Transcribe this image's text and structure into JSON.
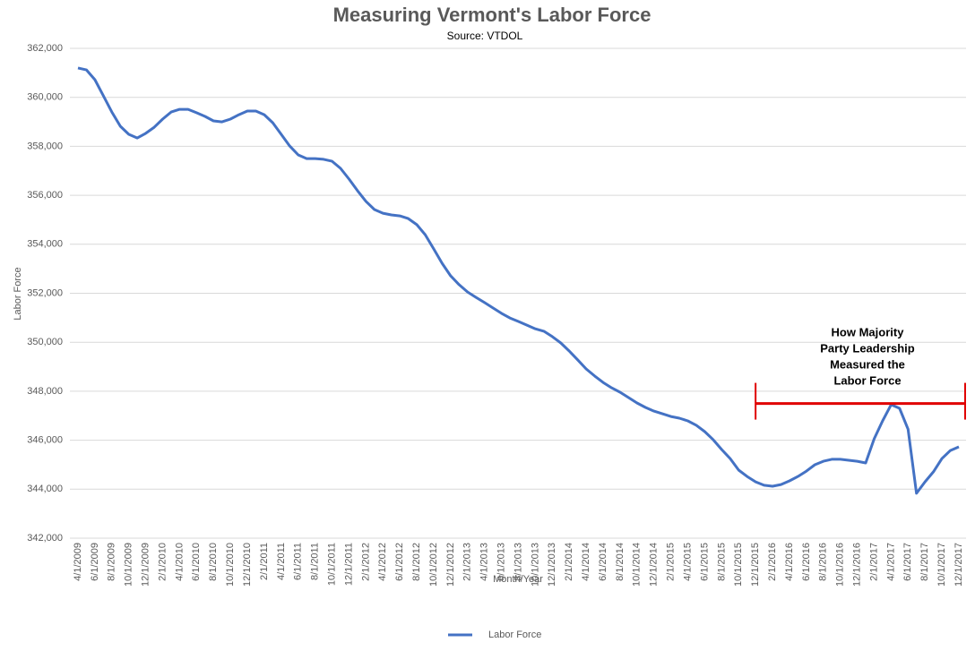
{
  "chart_data": {
    "type": "line",
    "title": "Measuring Vermont's Labor Force",
    "subtitle": "Source: VTDOL",
    "x_label": "Month/Year",
    "y_label": "Labor Force",
    "categories": [
      "4/1/2009",
      null,
      "6/1/2009",
      null,
      "8/1/2009",
      null,
      "10/1/2009",
      null,
      "12/1/2009",
      null,
      "2/1/2010",
      null,
      "4/1/2010",
      null,
      "6/1/2010",
      null,
      "8/1/2010",
      null,
      "10/1/2010",
      null,
      "12/1/2010",
      null,
      "2/1/2011",
      null,
      "4/1/2011",
      null,
      "6/1/2011",
      null,
      "8/1/2011",
      null,
      "10/1/2011",
      null,
      "12/1/2011",
      null,
      "2/1/2012",
      null,
      "4/1/2012",
      null,
      "6/1/2012",
      null,
      "8/1/2012",
      null,
      "10/1/2012",
      null,
      "12/1/2012",
      null,
      "2/1/2013",
      null,
      "4/1/2013",
      null,
      "6/1/2013",
      null,
      "8/1/2013",
      null,
      "10/1/2013",
      null,
      "12/1/2013",
      null,
      "2/1/2014",
      null,
      "4/1/2014",
      null,
      "6/1/2014",
      null,
      "8/1/2014",
      null,
      "10/1/2014",
      null,
      "12/1/2014",
      null,
      "2/1/2015",
      null,
      "4/1/2015",
      null,
      "6/1/2015",
      null,
      "8/1/2015",
      null,
      "10/1/2015",
      null,
      "12/1/2015",
      null,
      "2/1/2016",
      null,
      "4/1/2016",
      null,
      "6/1/2016",
      null,
      "8/1/2016",
      null,
      "10/1/2016",
      null,
      "12/1/2016",
      null,
      "2/1/2017",
      null,
      "4/1/2017",
      null,
      "6/1/2017",
      null,
      "8/1/2017",
      null,
      "10/1/2017",
      null,
      "12/1/2017"
    ],
    "series": [
      {
        "name": "Labor Force",
        "color": "#4472c4",
        "values": [
          361200,
          361120,
          360720,
          360060,
          359400,
          358820,
          358490,
          358340,
          358530,
          358780,
          359110,
          359400,
          359510,
          359510,
          359370,
          359220,
          359040,
          359000,
          359110,
          359290,
          359440,
          359440,
          359290,
          358960,
          358490,
          358010,
          357650,
          357500,
          357500,
          357470,
          357390,
          357100,
          356660,
          356190,
          355750,
          355420,
          355270,
          355200,
          355160,
          355050,
          354800,
          354390,
          353810,
          353220,
          352710,
          352350,
          352050,
          351830,
          351620,
          351400,
          351180,
          350990,
          350850,
          350700,
          350550,
          350450,
          350230,
          349970,
          349640,
          349280,
          348910,
          348620,
          348360,
          348140,
          347960,
          347740,
          347520,
          347340,
          347190,
          347080,
          346970,
          346900,
          346790,
          346610,
          346350,
          346020,
          345620,
          345250,
          344780,
          344520,
          344300,
          344160,
          344120,
          344190,
          344340,
          344520,
          344740,
          345000,
          345140,
          345220,
          345220,
          345180,
          345140,
          345070,
          346060,
          346790,
          347450,
          347300,
          346450,
          343830,
          344300,
          344710,
          345250,
          345580,
          345730
        ]
      }
    ],
    "ylim": [
      342000,
      362000
    ],
    "yticks": [
      {
        "value": 342000,
        "label": "342,000"
      },
      {
        "value": 344000,
        "label": "344,000"
      },
      {
        "value": 346000,
        "label": "346,000"
      },
      {
        "value": 348000,
        "label": "348,000"
      },
      {
        "value": 350000,
        "label": "350,000"
      },
      {
        "value": 352000,
        "label": "352,000"
      },
      {
        "value": 354000,
        "label": "354,000"
      },
      {
        "value": 356000,
        "label": "356,000"
      },
      {
        "value": 358000,
        "label": "358,000"
      },
      {
        "value": 360000,
        "label": "360,000"
      },
      {
        "value": 362000,
        "label": "362,000"
      }
    ],
    "grid": true,
    "legend": "bottom",
    "annotation": {
      "lines": [
        "How Majority",
        "Party Leadership",
        "Measured the",
        "Labor Force"
      ],
      "value": 347500,
      "from": "12/1/2015",
      "to": "12/1/2017",
      "color": "#e00000"
    }
  }
}
